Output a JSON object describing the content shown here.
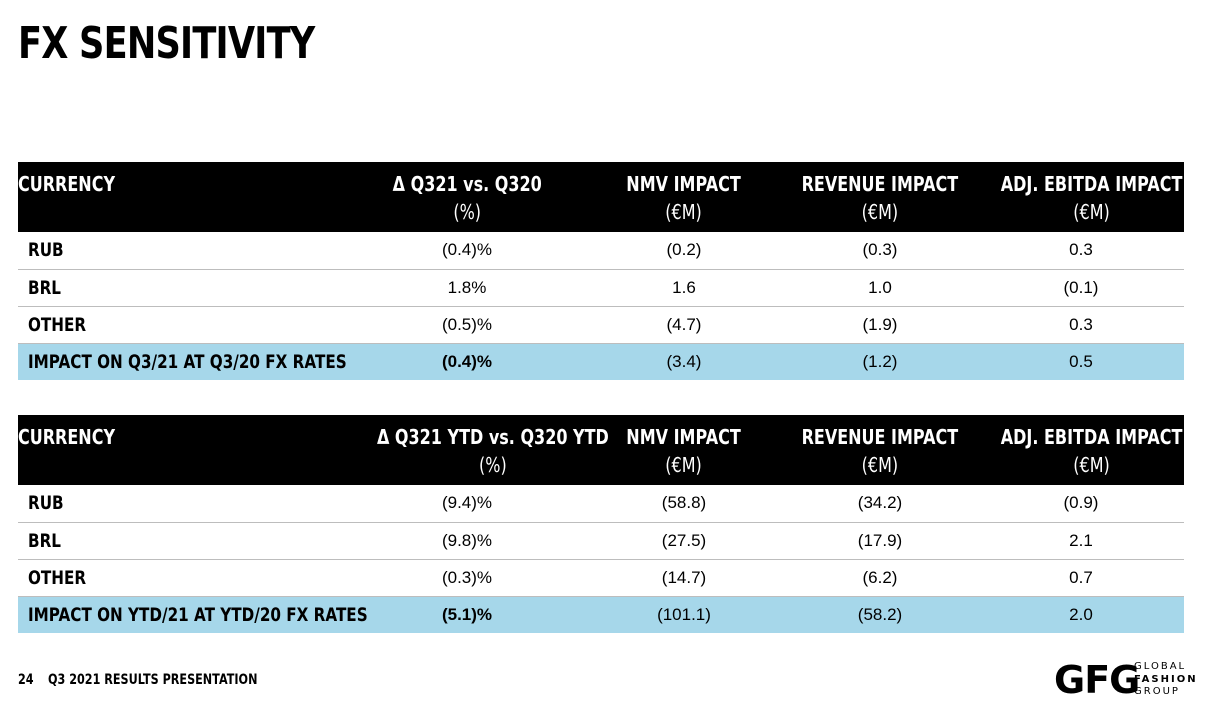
{
  "page": {
    "title": "FX SENSITIVITY",
    "page_number": "24",
    "footer_text": "Q3 2021 RESULTS PRESENTATION"
  },
  "logo": {
    "mark": "GFG",
    "line1": "GLOBAL",
    "line2": "FASHION",
    "line3": "GROUP"
  },
  "table_quarter": {
    "headers": [
      {
        "line1": "CURRENCY",
        "line2": ""
      },
      {
        "line1": "Δ Q321 vs. Q320",
        "line2": "(%)"
      },
      {
        "line1": "NMV IMPACT",
        "line2": "(€M)"
      },
      {
        "line1": "REVENUE IMPACT",
        "line2": "(€M)"
      },
      {
        "line1": "ADJ. EBITDA IMPACT",
        "line2": "(€M)"
      }
    ],
    "rows": [
      [
        "RUB",
        "(0.4)%",
        "(0.2)",
        "(0.3)",
        "0.3"
      ],
      [
        "BRL",
        "1.8%",
        "1.6",
        "1.0",
        "(0.1)"
      ],
      [
        "OTHER",
        "(0.5)%",
        "(4.7)",
        "(1.9)",
        "0.3"
      ],
      [
        "IMPACT ON Q3/21 AT Q3/20 FX RATES",
        "(0.4)%",
        "(3.4)",
        "(1.2)",
        "0.5"
      ]
    ]
  },
  "table_ytd": {
    "headers": [
      {
        "line1": "CURRENCY",
        "line2": ""
      },
      {
        "line1": "Δ Q321 YTD vs. Q320 YTD",
        "line2": "(%)"
      },
      {
        "line1": "NMV IMPACT",
        "line2": "(€M)"
      },
      {
        "line1": "REVENUE IMPACT",
        "line2": "(€M)"
      },
      {
        "line1": "ADJ. EBITDA IMPACT",
        "line2": "(€M)"
      }
    ],
    "rows": [
      [
        "RUB",
        "(9.4)%",
        "(58.8)",
        "(34.2)",
        "(0.9)"
      ],
      [
        "BRL",
        "(9.8)%",
        "(27.5)",
        "(17.9)",
        "2.1"
      ],
      [
        "OTHER",
        "(0.3)%",
        "(14.7)",
        "(6.2)",
        "0.7"
      ],
      [
        "IMPACT ON YTD/21 AT YTD/20 FX RATES",
        "(5.1)%",
        "(101.1)",
        "(58.2)",
        "2.0"
      ]
    ]
  }
}
